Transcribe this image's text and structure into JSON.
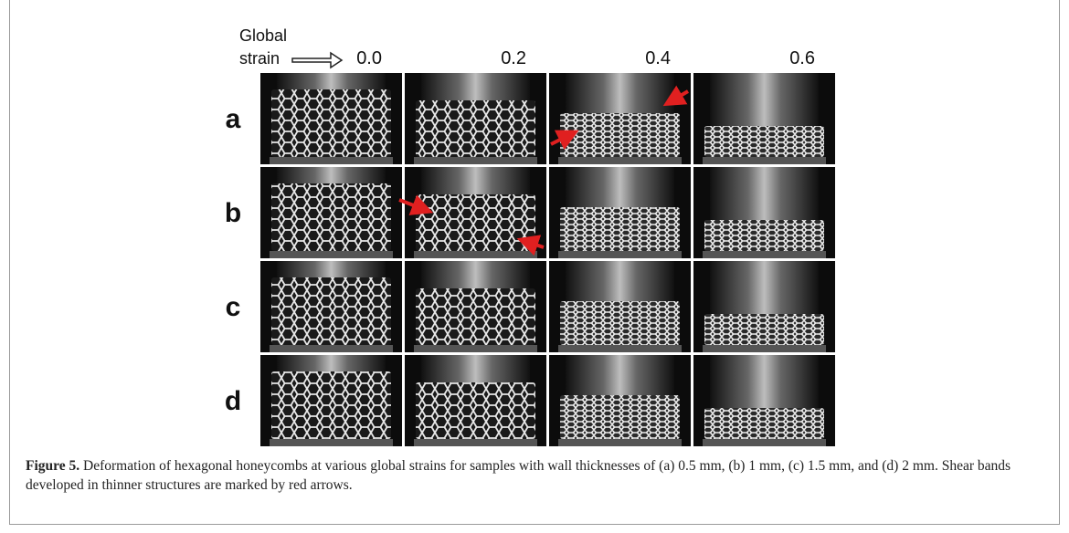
{
  "figure": {
    "axis_label": [
      "Global",
      "strain"
    ],
    "columns": [
      "0.0",
      "0.2",
      "0.4",
      "0.6"
    ],
    "rows": [
      "a",
      "b",
      "c",
      "d"
    ],
    "caption": {
      "label": "Figure 5.",
      "text": "Deformation of hexagonal honeycombs at various global strains for samples with wall thicknesses of (a) 0.5 mm, (b) 1 mm, (c) 1.5 mm, and (d) 2 mm. Shear bands developed in thinner structures are marked by red arrows."
    }
  }
}
